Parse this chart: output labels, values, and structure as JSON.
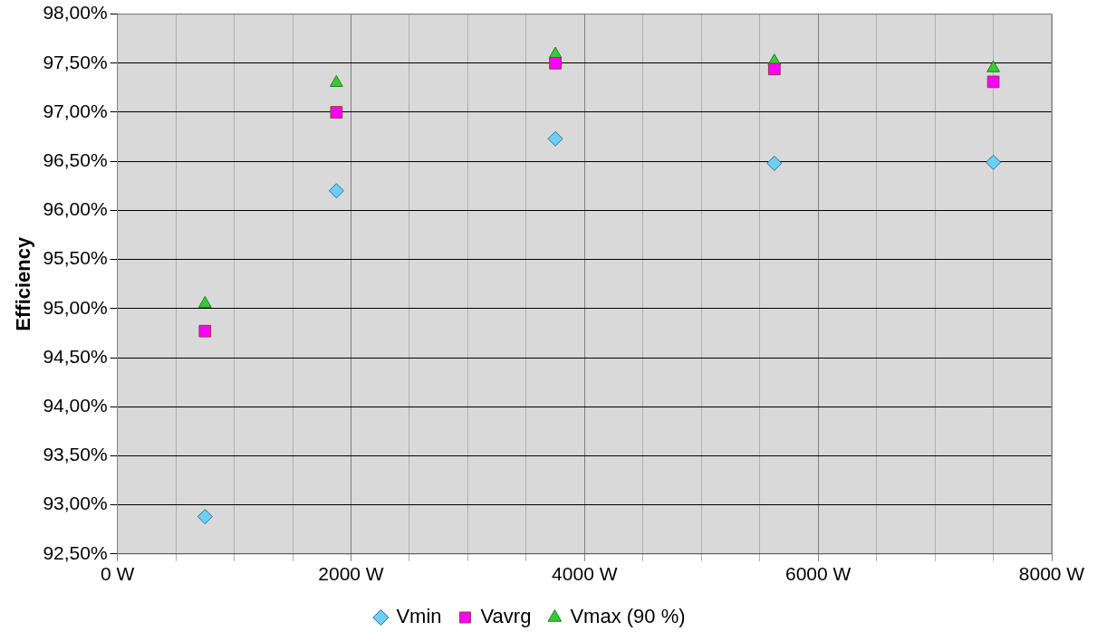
{
  "chart_data": {
    "type": "scatter",
    "ylabel": "Efficiency",
    "series": [
      {
        "name": "Vmin",
        "color": "#6ccff6",
        "marker": "diamond",
        "x": [
          750,
          1875,
          3750,
          5625,
          7500
        ],
        "values": [
          92.88,
          96.2,
          96.73,
          96.48,
          96.49
        ]
      },
      {
        "name": "Vavrg",
        "color": "#ff00ff",
        "marker": "square",
        "x": [
          750,
          1875,
          3750,
          5625,
          7500
        ],
        "values": [
          94.77,
          97.0,
          97.5,
          97.44,
          97.31
        ]
      },
      {
        "name": "Vmax (90 %)",
        "color": "#33cc33",
        "marker": "triangle",
        "x": [
          750,
          1875,
          3750,
          5625,
          7500
        ],
        "values": [
          95.05,
          97.3,
          97.59,
          97.52,
          97.45
        ]
      }
    ],
    "xlim": [
      0,
      8000
    ],
    "xticks": [
      {
        "value": 0,
        "label": "0 W"
      },
      {
        "value": 500,
        "label": null
      },
      {
        "value": 1000,
        "label": null
      },
      {
        "value": 1500,
        "label": null
      },
      {
        "value": 2000,
        "label": "2000 W"
      },
      {
        "value": 2500,
        "label": null
      },
      {
        "value": 3000,
        "label": null
      },
      {
        "value": 3500,
        "label": null
      },
      {
        "value": 4000,
        "label": "4000 W"
      },
      {
        "value": 4500,
        "label": null
      },
      {
        "value": 5000,
        "label": null
      },
      {
        "value": 5500,
        "label": null
      },
      {
        "value": 6000,
        "label": "6000 W"
      },
      {
        "value": 6500,
        "label": null
      },
      {
        "value": 7000,
        "label": null
      },
      {
        "value": 7500,
        "label": null
      },
      {
        "value": 8000,
        "label": "8000 W"
      }
    ],
    "ylim": [
      92.5,
      98
    ],
    "yticks": [
      {
        "value": 92.5,
        "label": "92,50%"
      },
      {
        "value": 93,
        "label": "93,00%"
      },
      {
        "value": 93.5,
        "label": "93,50%"
      },
      {
        "value": 94,
        "label": "94,00%"
      },
      {
        "value": 94.5,
        "label": "94,50%"
      },
      {
        "value": 95,
        "label": "95,00%"
      },
      {
        "value": 95.5,
        "label": "95,50%"
      },
      {
        "value": 96,
        "label": "96,00%"
      },
      {
        "value": 96.5,
        "label": "96,50%"
      },
      {
        "value": 97,
        "label": "97,00%"
      },
      {
        "value": 97.5,
        "label": "97,50%"
      },
      {
        "value": 98,
        "label": "98,00%"
      }
    ],
    "grid": true,
    "legend": "bottom"
  }
}
